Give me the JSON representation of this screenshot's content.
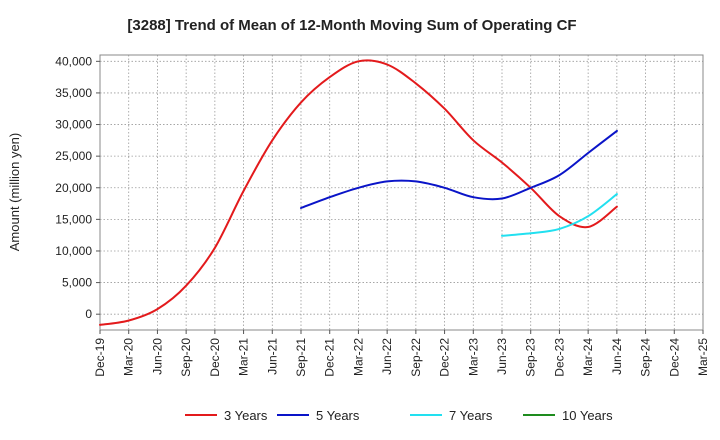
{
  "chart_data": {
    "type": "line",
    "title": "[3288]  Trend of Mean of 12-Month Moving Sum of Operating CF",
    "xlabel": "",
    "ylabel": "Amount (million yen)",
    "ylim": [
      -2500,
      41000
    ],
    "yticks": [
      0,
      5000,
      10000,
      15000,
      20000,
      25000,
      30000,
      35000,
      40000
    ],
    "ytick_labels": [
      "0",
      "5,000",
      "10,000",
      "15,000",
      "20,000",
      "25,000",
      "30,000",
      "35,000",
      "40,000"
    ],
    "x_ticks": [
      "Dec-19",
      "Mar-20",
      "Jun-20",
      "Sep-20",
      "Dec-20",
      "Mar-21",
      "Jun-21",
      "Sep-21",
      "Dec-21",
      "Mar-22",
      "Jun-22",
      "Sep-22",
      "Dec-22",
      "Mar-23",
      "Jun-23",
      "Sep-23",
      "Dec-23",
      "Mar-24",
      "Jun-24",
      "Sep-24",
      "Dec-24",
      "Mar-25"
    ],
    "grid": true,
    "legend_position": "bottom",
    "series": [
      {
        "name": "3 Years",
        "color": "#e31a1c",
        "start_index": 0,
        "values": [
          -1700,
          -1000,
          800,
          4500,
          10500,
          19500,
          27500,
          33500,
          37500,
          40000,
          39500,
          36500,
          32500,
          27500,
          24000,
          20000,
          15500,
          13800,
          17000
        ]
      },
      {
        "name": "5 Years",
        "color": "#0a14c8",
        "start_index": 7,
        "values": [
          16800,
          18500,
          20000,
          21000,
          21000,
          20000,
          18500,
          18300,
          20000,
          22000,
          25500,
          29000
        ]
      },
      {
        "name": "7 Years",
        "color": "#22e0f0",
        "start_index": 14,
        "values": [
          12400,
          12800,
          13500,
          15500,
          19000
        ]
      },
      {
        "name": "10 Years",
        "color": "#1e8c1e",
        "start_index": 0,
        "values": []
      }
    ]
  }
}
